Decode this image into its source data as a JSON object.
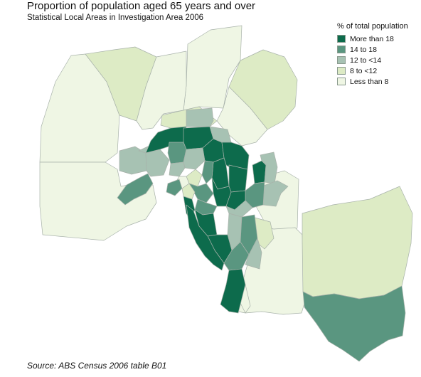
{
  "title": "Proportion of population aged 65 years and over",
  "subtitle": "Statistical Local Areas in Investigation Area 2006",
  "source": "Source: ABS Census 2006 table B01",
  "legend": {
    "title": "% of total population",
    "items": [
      {
        "label": "More than 18",
        "color": "#0d6b4c"
      },
      {
        "label": "14 to 18",
        "color": "#5a9680"
      },
      {
        "label": "12 to  <14",
        "color": "#a7c2b3"
      },
      {
        "label": "8 to <12",
        "color": "#ddebc5"
      },
      {
        "label": "Less than 8",
        "color": "#eff6e4"
      }
    ]
  }
}
